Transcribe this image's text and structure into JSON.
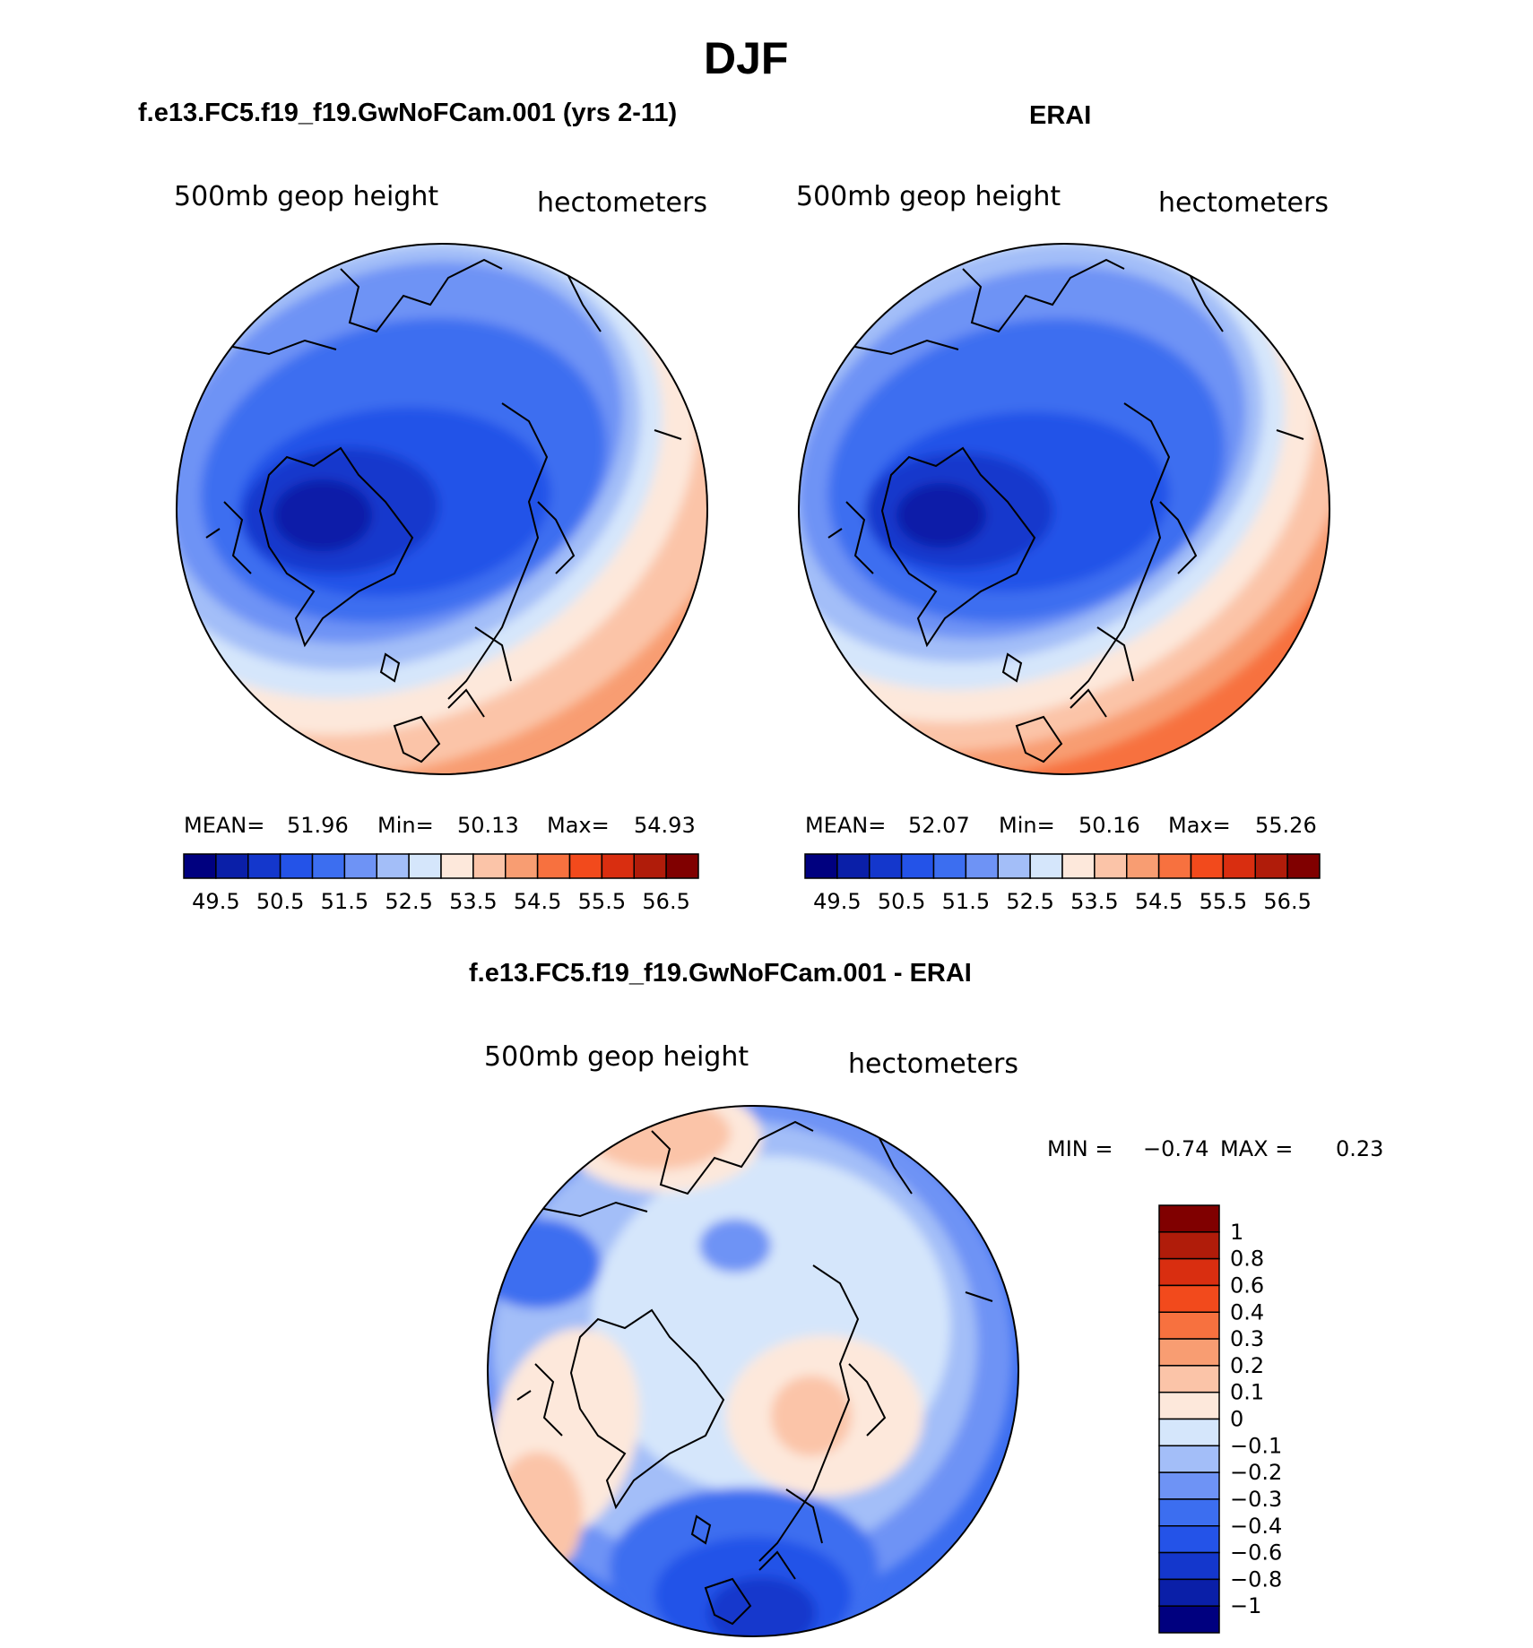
{
  "main_title": "DJF",
  "panels": [
    {
      "title": "f.e13.FC5.f19_f19.GwNoFCam.001 (yrs 2-11)",
      "variable": "500mb geop height",
      "units": "hectometers",
      "stats": {
        "mean_label": "MEAN=",
        "mean": "51.96",
        "min_label": "Min=",
        "min": "50.13",
        "max_label": "Max=",
        "max": "54.93"
      }
    },
    {
      "title": "ERAI",
      "variable": "500mb geop height",
      "units": "hectometers",
      "stats": {
        "mean_label": "MEAN=",
        "mean": "52.07",
        "min_label": "Min=",
        "min": "50.16",
        "max_label": "Max=",
        "max": "55.26"
      }
    },
    {
      "title": "f.e13.FC5.f19_f19.GwNoFCam.001 - ERAI",
      "variable": "500mb geop height",
      "units": "hectometers",
      "stats": {
        "min_label": "MIN =",
        "min": "−0.74",
        "max_label": "MAX =",
        "max": "0.23"
      }
    }
  ],
  "horizontal_colorbar": {
    "labels": [
      "49.5",
      "50.5",
      "51.5",
      "52.5",
      "53.5",
      "54.5",
      "55.5",
      "56.5"
    ],
    "colors": [
      "#00007f",
      "#0a1fa8",
      "#1437cc",
      "#2453e8",
      "#3c6ef0",
      "#6e93f5",
      "#a3bef8",
      "#d5e6fb",
      "#fde8db",
      "#fbc4a8",
      "#f89d72",
      "#f7713f",
      "#f24a1c",
      "#d92e10",
      "#b01c0a",
      "#800000"
    ]
  },
  "vertical_colorbar": {
    "labels": [
      "1",
      "0.8",
      "0.6",
      "0.4",
      "0.3",
      "0.2",
      "0.1",
      "0",
      "−0.1",
      "−0.2",
      "−0.3",
      "−0.4",
      "−0.6",
      "−0.8",
      "−1"
    ],
    "colors": [
      "#800000",
      "#b01c0a",
      "#d92e10",
      "#f24a1c",
      "#f7713f",
      "#f89d72",
      "#fbc4a8",
      "#fde8db",
      "#d5e6fb",
      "#a3bef8",
      "#6e93f5",
      "#3c6ef0",
      "#2453e8",
      "#1437cc",
      "#0a1fa8",
      "#00007f"
    ]
  }
}
